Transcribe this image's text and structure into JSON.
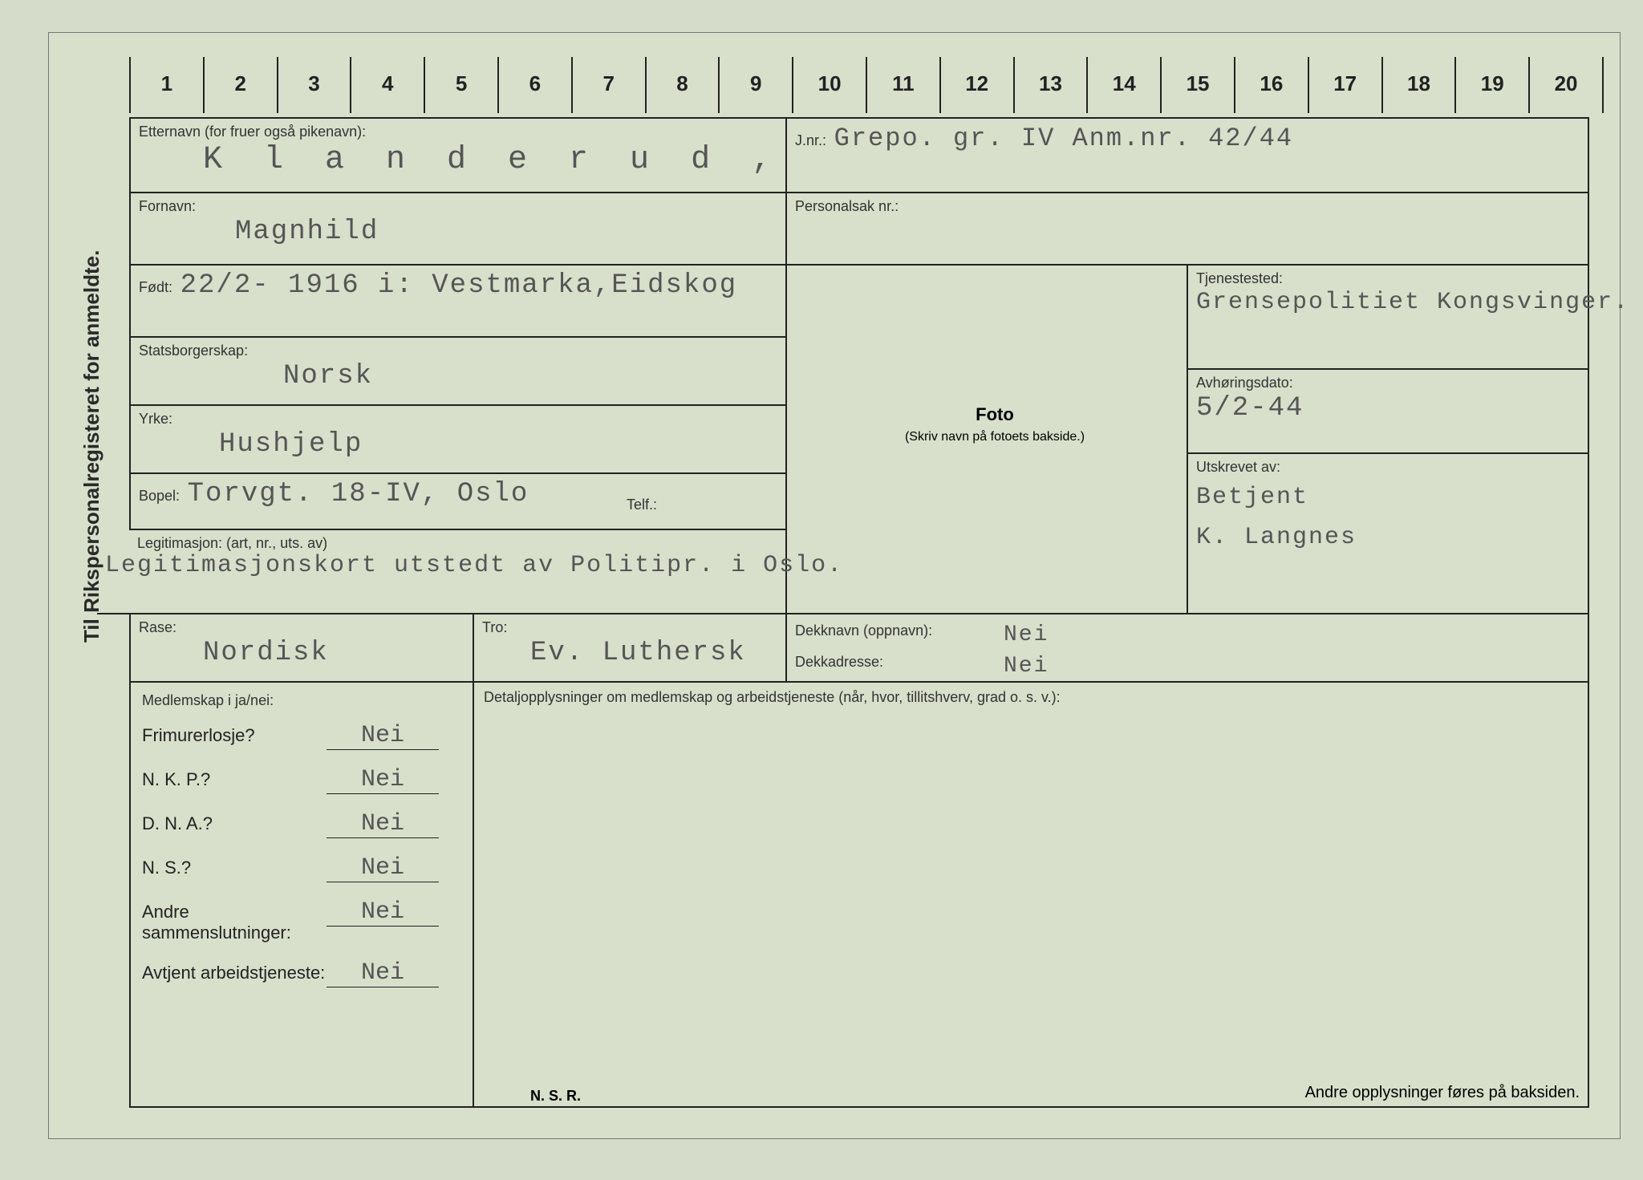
{
  "vertical_label": "Til Rikspersonalregisteret for anmeldte.",
  "ruler": [
    "1",
    "2",
    "3",
    "4",
    "5",
    "6",
    "7",
    "8",
    "9",
    "10",
    "11",
    "12",
    "13",
    "14",
    "15",
    "16",
    "17",
    "18",
    "19",
    "20"
  ],
  "etternavn": {
    "label": "Etternavn (for fruer også pikenavn):",
    "value": "K l a n d e r u d ,"
  },
  "fornavn": {
    "label": "Fornavn:",
    "value": "Magnhild"
  },
  "fodt": {
    "label": "Født:",
    "value": "22/2- 1916 i: Vestmarka,Eidskog"
  },
  "statsborgerskap": {
    "label": "Statsborgerskap:",
    "value": "Norsk"
  },
  "yrke": {
    "label": "Yrke:",
    "value": "Hushjelp"
  },
  "bopel": {
    "label": "Bopel:",
    "value": "Torvgt. 18-IV, Oslo",
    "telf_label": "Telf.:"
  },
  "legitimasjon": {
    "label": "Legitimasjon: (art, nr., uts. av)",
    "value": "Legitimasjonskort utstedt av Politipr. i Oslo."
  },
  "rase": {
    "label": "Rase:",
    "value": "Nordisk"
  },
  "tro": {
    "label": "Tro:",
    "value": "Ev. Luthersk"
  },
  "jnr": {
    "label": "J.nr.:",
    "value": "Grepo. gr. IV Anm.nr. 42/44"
  },
  "personalsak": {
    "label": "Personalsak nr.:",
    "value": ""
  },
  "foto": {
    "title": "Foto",
    "sub": "(Skriv navn på fotoets bakside.)"
  },
  "tjenestested": {
    "label": "Tjenestested:",
    "value": "Grensepolitiet Kongsvinger."
  },
  "avhoringsdato": {
    "label": "Avhøringsdato:",
    "value": "5/2-44"
  },
  "utskrevet": {
    "label": "Utskrevet av:",
    "value": "Betjent\nK. Langnes"
  },
  "dekknavn": {
    "label": "Dekknavn (oppnavn):",
    "value": "Nei"
  },
  "dekkadresse": {
    "label": "Dekkadresse:",
    "value": "Nei"
  },
  "membership": {
    "header": "Medlemskap i ja/nei:",
    "rows": [
      {
        "q": "Frimurerlosje?",
        "a": "Nei"
      },
      {
        "q": "N. K. P.?",
        "a": "Nei"
      },
      {
        "q": "D. N. A.?",
        "a": "Nei"
      },
      {
        "q": "N. S.?",
        "a": "Nei"
      },
      {
        "q": "Andre sammenslutninger:",
        "a": "Nei"
      },
      {
        "q": "Avtjent arbeidstjeneste:",
        "a": "Nei"
      }
    ]
  },
  "details_label": "Detaljopplysninger om medlemskap og arbeidstjeneste (når, hvor, tillitshverv, grad o. s. v.):",
  "footer_nsr": "N. S. R.",
  "footer_right": "Andre opplysninger føres på baksiden."
}
